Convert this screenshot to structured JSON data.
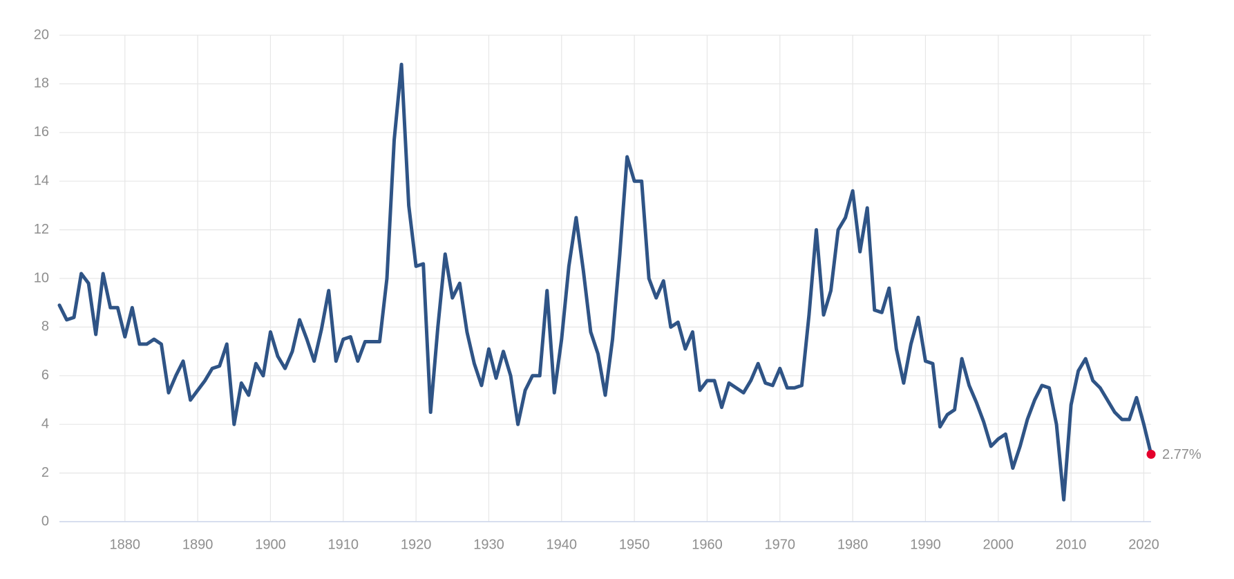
{
  "chart_data": {
    "type": "line",
    "color": "#2f5486",
    "marker_color": "#e4002b",
    "grid": true,
    "x": [
      1871,
      1872,
      1873,
      1874,
      1875,
      1876,
      1877,
      1878,
      1879,
      1880,
      1881,
      1882,
      1883,
      1884,
      1885,
      1886,
      1887,
      1888,
      1889,
      1890,
      1891,
      1892,
      1893,
      1894,
      1895,
      1896,
      1897,
      1898,
      1899,
      1900,
      1901,
      1902,
      1903,
      1904,
      1905,
      1906,
      1907,
      1908,
      1909,
      1910,
      1911,
      1912,
      1913,
      1914,
      1915,
      1916,
      1917,
      1918,
      1919,
      1920,
      1921,
      1922,
      1923,
      1924,
      1925,
      1926,
      1927,
      1928,
      1929,
      1930,
      1931,
      1932,
      1933,
      1934,
      1935,
      1936,
      1937,
      1938,
      1939,
      1940,
      1941,
      1942,
      1943,
      1944,
      1945,
      1946,
      1947,
      1948,
      1949,
      1950,
      1951,
      1952,
      1953,
      1954,
      1955,
      1956,
      1957,
      1958,
      1959,
      1960,
      1961,
      1962,
      1963,
      1964,
      1965,
      1966,
      1967,
      1968,
      1969,
      1970,
      1971,
      1972,
      1973,
      1974,
      1975,
      1976,
      1977,
      1978,
      1979,
      1980,
      1981,
      1982,
      1983,
      1984,
      1985,
      1986,
      1987,
      1988,
      1989,
      1990,
      1991,
      1992,
      1993,
      1994,
      1995,
      1996,
      1997,
      1998,
      1999,
      2000,
      2001,
      2002,
      2003,
      2004,
      2005,
      2006,
      2007,
      2008,
      2009,
      2010,
      2011,
      2012,
      2013,
      2014,
      2015,
      2016,
      2017,
      2018,
      2019,
      2020,
      2021
    ],
    "values": [
      8.9,
      8.3,
      8.4,
      10.2,
      9.8,
      7.7,
      10.2,
      8.8,
      8.8,
      7.6,
      8.8,
      7.3,
      7.3,
      7.5,
      7.3,
      5.3,
      6.0,
      6.6,
      5.0,
      5.4,
      5.8,
      6.3,
      6.4,
      7.3,
      4.0,
      5.7,
      5.2,
      6.5,
      6.0,
      7.8,
      6.8,
      6.3,
      7.0,
      8.3,
      7.5,
      6.6,
      7.9,
      9.5,
      6.6,
      7.5,
      7.6,
      6.6,
      7.4,
      7.4,
      7.4,
      10.0,
      15.7,
      18.8,
      13.0,
      10.5,
      10.6,
      4.5,
      8.0,
      11.0,
      9.2,
      9.8,
      7.8,
      6.5,
      5.6,
      7.1,
      5.9,
      7.0,
      6.0,
      4.0,
      5.4,
      6.0,
      6.0,
      9.5,
      5.3,
      7.5,
      10.5,
      12.5,
      10.3,
      7.8,
      6.9,
      5.2,
      7.5,
      11.0,
      15.0,
      14.0,
      14.0,
      10.0,
      9.2,
      9.9,
      8.0,
      8.2,
      7.1,
      7.8,
      5.4,
      5.8,
      5.8,
      4.7,
      5.7,
      5.5,
      5.3,
      5.8,
      6.5,
      5.7,
      5.6,
      6.3,
      5.5,
      5.5,
      5.6,
      8.5,
      12.0,
      8.5,
      9.5,
      12.0,
      12.5,
      13.6,
      11.1,
      12.9,
      8.7,
      8.6,
      9.6,
      7.1,
      5.7,
      7.3,
      8.4,
      6.6,
      6.5,
      3.9,
      4.4,
      4.6,
      6.7,
      5.6,
      4.9,
      4.1,
      3.1,
      3.4,
      3.6,
      2.2,
      3.1,
      4.2,
      5.0,
      5.6,
      5.5,
      4.0,
      0.9,
      4.8,
      6.2,
      6.7,
      5.8,
      5.5,
      5.0,
      4.5,
      4.2,
      4.2,
      5.1,
      4.0,
      2.77
    ],
    "value_labels": [
      null,
      null,
      null,
      null,
      null,
      null,
      null,
      null,
      null,
      null,
      null,
      null,
      null,
      null,
      null,
      null,
      null,
      null,
      null,
      null,
      null,
      null,
      null,
      null,
      null,
      null,
      null,
      null,
      null,
      null,
      null,
      null,
      null,
      null,
      null,
      null,
      null,
      null,
      null,
      null,
      null,
      null,
      null,
      null,
      null,
      null,
      null,
      null,
      null,
      null,
      null,
      null,
      null,
      null,
      null,
      null,
      null,
      null,
      null,
      null,
      null,
      null,
      null,
      null,
      null,
      null,
      null,
      null,
      null,
      null,
      null,
      null,
      null,
      null,
      null,
      null,
      null,
      null,
      null,
      null,
      null,
      null,
      null,
      null,
      null,
      null,
      null,
      null,
      null,
      null,
      null,
      null,
      null,
      null,
      null,
      null,
      null,
      null,
      null,
      null,
      null,
      null,
      null,
      null,
      null,
      null,
      null,
      null,
      null,
      null,
      null,
      null,
      null,
      null,
      null,
      null,
      null,
      null,
      null,
      null,
      null,
      null,
      null,
      null,
      null,
      null,
      null,
      null,
      null,
      null,
      null,
      null,
      null,
      null,
      null,
      null,
      null,
      null,
      null,
      null,
      null,
      null,
      null,
      null,
      null,
      null,
      null,
      null,
      null,
      null,
      "2.77%"
    ],
    "xlim": [
      1871,
      2021
    ],
    "xticks": [
      1880,
      1890,
      1900,
      1910,
      1920,
      1930,
      1940,
      1950,
      1960,
      1970,
      1980,
      1990,
      2000,
      2010,
      2020
    ],
    "ylim": [
      0,
      20
    ],
    "yticks": [
      0,
      2,
      4,
      6,
      8,
      10,
      12,
      14,
      16,
      18,
      20
    ]
  }
}
